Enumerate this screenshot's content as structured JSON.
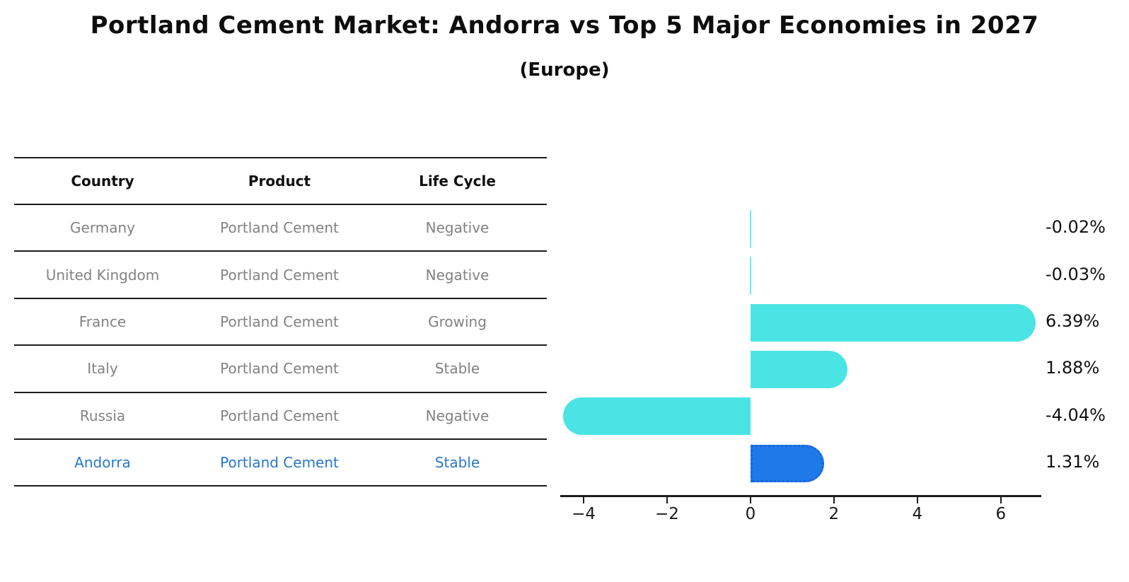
{
  "title": "Portland Cement Market: Andorra vs Top 5 Major Economies in 2027",
  "subtitle": "(Europe)",
  "table": {
    "headers": [
      "Country",
      "Product",
      "Life Cycle"
    ],
    "rows": [
      {
        "country": "Germany",
        "product": "Portland Cement",
        "life_cycle": "Negative",
        "highlight": false
      },
      {
        "country": "United Kingdom",
        "product": "Portland Cement",
        "life_cycle": "Negative",
        "highlight": false
      },
      {
        "country": "France",
        "product": "Portland Cement",
        "life_cycle": "Growing",
        "highlight": false
      },
      {
        "country": "Italy",
        "product": "Portland Cement",
        "life_cycle": "Stable",
        "highlight": false
      },
      {
        "country": "Russia",
        "product": "Portland Cement",
        "life_cycle": "Negative",
        "highlight": false
      },
      {
        "country": "Andorra",
        "product": "Portland Cement",
        "life_cycle": "Stable",
        "highlight": true
      }
    ]
  },
  "chart_data": {
    "type": "bar",
    "orientation": "horizontal",
    "categories": [
      "Germany",
      "United Kingdom",
      "France",
      "Italy",
      "Russia",
      "Andorra"
    ],
    "values": [
      -0.02,
      -0.03,
      6.39,
      1.88,
      -4.04,
      1.31
    ],
    "value_labels": [
      "-0.02%",
      "-0.03%",
      "6.39%",
      "1.88%",
      "-4.04%",
      "1.31%"
    ],
    "highlight_index": 5,
    "x_ticks": [
      -4,
      -2,
      0,
      2,
      4,
      6
    ],
    "x_tick_labels": [
      "−4",
      "−2",
      "0",
      "2",
      "4",
      "6"
    ],
    "xlim": [
      -4.56,
      6.97
    ],
    "grid": false,
    "legend": false,
    "title": "Portland Cement Market: Andorra vs Top 5 Major Economies in 2027",
    "xlabel": "",
    "ylabel": ""
  },
  "colors": {
    "bar": "#4be4e4",
    "highlight_bar": "#2079e8",
    "highlight_border": "#1a63dd",
    "highlight_text": "#2878cb",
    "axis": "#1c1c1c",
    "row_text": "#828282",
    "header_text": "#111111"
  }
}
